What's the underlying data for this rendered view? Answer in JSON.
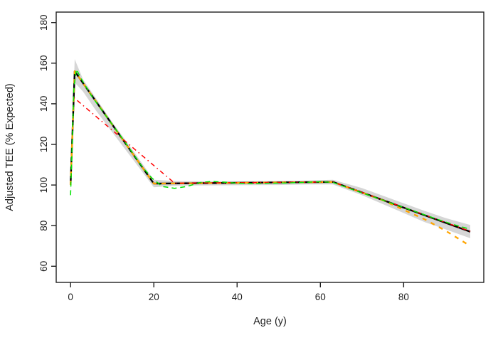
{
  "figure": {
    "background": "#ffffff",
    "axis_color": "#1f1f1f"
  },
  "chart_data": {
    "type": "line",
    "title": "",
    "xlabel": "Age (y)",
    "ylabel": "Adjusted TEE (% Expected)",
    "x_ticks": [
      0,
      20,
      40,
      60,
      80
    ],
    "y_ticks": [
      60,
      80,
      100,
      120,
      140,
      160,
      180
    ],
    "xlim": [
      -3.45,
      99.25
    ],
    "ylim": [
      52.05,
      185.15
    ],
    "grid": false,
    "legend_position": "none",
    "axis_color": "#1f1f1f",
    "confidence_band": {
      "name": "segmented-fit-95ci-band",
      "color": "#bdbdbd",
      "opacity": 0.62,
      "upper": [
        [
          0,
          104
        ],
        [
          1,
          162
        ],
        [
          3,
          152
        ],
        [
          6,
          143
        ],
        [
          10,
          131
        ],
        [
          15,
          117
        ],
        [
          20,
          102.6
        ],
        [
          25,
          102
        ],
        [
          30,
          101.9
        ],
        [
          40,
          101.9
        ],
        [
          50,
          102
        ],
        [
          57,
          102.2
        ],
        [
          63,
          102.6
        ],
        [
          70,
          98.5
        ],
        [
          78,
          92.5
        ],
        [
          85,
          87.3
        ],
        [
          90,
          83.8
        ],
        [
          96,
          80.3
        ]
      ],
      "lower": [
        [
          0,
          96
        ],
        [
          1,
          150.5
        ],
        [
          3,
          146
        ],
        [
          6,
          137
        ],
        [
          10,
          126
        ],
        [
          15,
          112.5
        ],
        [
          20,
          98.9
        ],
        [
          25,
          99.6
        ],
        [
          30,
          99.8
        ],
        [
          40,
          99.9
        ],
        [
          50,
          100
        ],
        [
          57,
          100.3
        ],
        [
          63,
          100.3
        ],
        [
          70,
          95
        ],
        [
          78,
          88
        ],
        [
          85,
          81.8
        ],
        [
          90,
          78.2
        ],
        [
          96,
          73.8
        ]
      ]
    },
    "series": [
      {
        "name": "segmented-fit-black-solid",
        "color": "#000000",
        "style": "solid",
        "width": 2.4,
        "points": [
          [
            0,
            100
          ],
          [
            1,
            156
          ],
          [
            20,
            100.7
          ],
          [
            63,
            101.5
          ],
          [
            96,
            77
          ]
        ]
      },
      {
        "name": "orange-model-dashed",
        "color": "#FFA500",
        "style": "dashed",
        "width": 2.3,
        "points": [
          [
            0,
            100
          ],
          [
            1,
            156
          ],
          [
            20,
            100.7
          ],
          [
            63,
            101.5
          ],
          [
            70,
            96.3
          ],
          [
            75,
            92.5
          ],
          [
            80,
            87.8
          ],
          [
            85,
            83.2
          ],
          [
            90,
            77.6
          ],
          [
            96,
            70
          ]
        ]
      },
      {
        "name": "red-model-dotdash",
        "color": "#FF0000",
        "style": "dotdash",
        "width": 1.5,
        "points": [
          [
            0.8,
            143
          ],
          [
            25,
            100.9
          ],
          [
            35,
            101.1
          ],
          [
            63,
            101.5
          ],
          [
            80,
            89
          ],
          [
            96,
            77.2
          ]
        ]
      },
      {
        "name": "green-spline-dashed",
        "color": "#00E400",
        "style": "dashed2",
        "width": 1.5,
        "points": [
          [
            0,
            95
          ],
          [
            0.8,
            148
          ],
          [
            1.4,
            157
          ],
          [
            2.5,
            152.5
          ],
          [
            5,
            144
          ],
          [
            8,
            135.5
          ],
          [
            11,
            127
          ],
          [
            14,
            118.5
          ],
          [
            17,
            109.5
          ],
          [
            19.5,
            103.5
          ],
          [
            22,
            99.3
          ],
          [
            25,
            98.4
          ],
          [
            28,
            99.3
          ],
          [
            31,
            101.2
          ],
          [
            34,
            101.8
          ],
          [
            37,
            101.4
          ],
          [
            40,
            100.9
          ],
          [
            44,
            100.7
          ],
          [
            48,
            100.9
          ],
          [
            52,
            101
          ],
          [
            56,
            101.3
          ],
          [
            60,
            101.6
          ],
          [
            63,
            101.3
          ],
          [
            68,
            97.6
          ],
          [
            73,
            94
          ],
          [
            78,
            90.4
          ],
          [
            83,
            86.8
          ],
          [
            88,
            83.2
          ],
          [
            92,
            80.5
          ],
          [
            96,
            78.2
          ]
        ]
      }
    ]
  }
}
